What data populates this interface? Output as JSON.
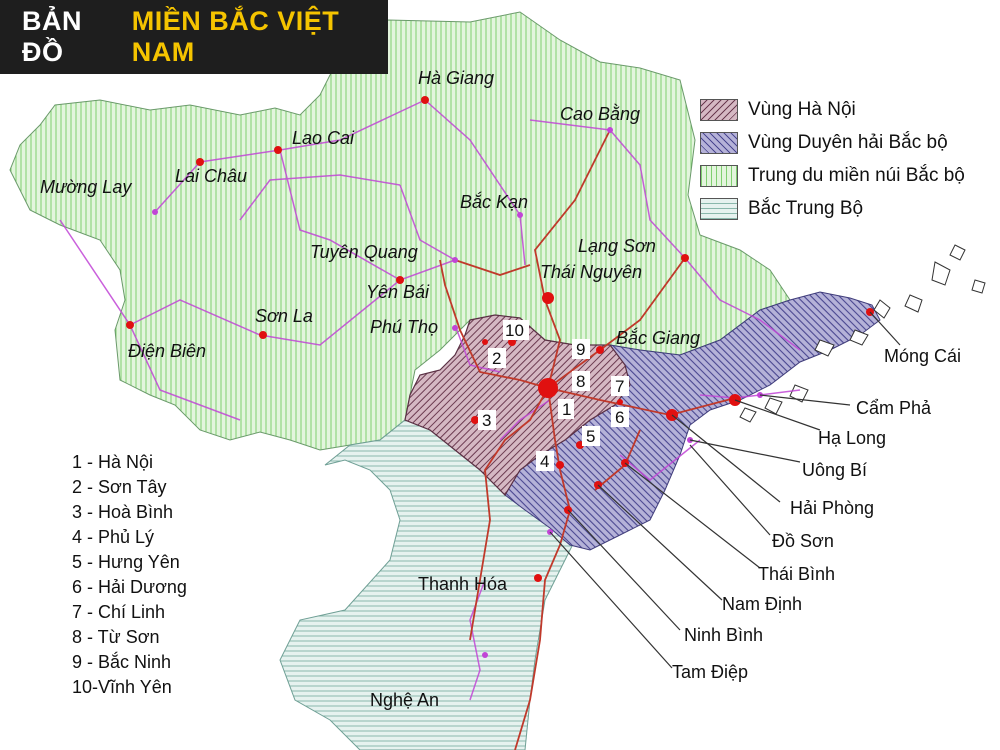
{
  "title": {
    "part1": "BẢN ĐỒ",
    "part2": "MIỀN BẮC VIỆT NAM"
  },
  "colors": {
    "title_bg": "#1e1e1e",
    "title_accent": "#f5c400",
    "hanoi_region": "#c9a6b4",
    "coastal_region": "#9d9ac9",
    "midland_region": "#d5f0cf",
    "north_central": "#d6ebe6",
    "road_main": "#c0392b",
    "road_secondary": "#b93cc8",
    "city_dot": "#e01010"
  },
  "legend": [
    {
      "label": "Vùng Hà Nội",
      "color": "#c9a6b4"
    },
    {
      "label": "Vùng Duyên hải Bắc bộ",
      "color": "#9d9ac9"
    },
    {
      "label": "Trung du miền núi Bắc bộ",
      "color": "#d5f0cf"
    },
    {
      "label": "Bắc Trung Bộ",
      "color": "#d6ebe6"
    }
  ],
  "key_list": [
    "1 - Hà Nội",
    "2 - Sơn Tây",
    "3 - Hoà Bình",
    "4 - Phủ Lý",
    "5 - Hưng Yên",
    "6 - Hải Dương",
    "7 - Chí Linh",
    "8 - Từ Sơn",
    "9 - Bắc Ninh",
    "10-Vĩnh Yên"
  ],
  "province_labels": [
    {
      "name": "Hà Giang",
      "italic": true
    },
    {
      "name": "Cao Bằng",
      "italic": true
    },
    {
      "name": "Lao Cai",
      "italic": true
    },
    {
      "name": "Lai Châu",
      "italic": true
    },
    {
      "name": "Mường Lay",
      "italic": true
    },
    {
      "name": "Bắc Kạn",
      "italic": true
    },
    {
      "name": "Lạng Sơn",
      "italic": true
    },
    {
      "name": "Tuyên Quang",
      "italic": true
    },
    {
      "name": "Thái Nguyên",
      "italic": true
    },
    {
      "name": "Yên Bái",
      "italic": true
    },
    {
      "name": "Sơn La",
      "italic": true
    },
    {
      "name": "Phú Thọ",
      "italic": true
    },
    {
      "name": "Bắc Giang",
      "italic": true
    },
    {
      "name": "Điện Biên",
      "italic": true
    }
  ],
  "coastal_labels": [
    "Móng Cái",
    "Cẩm Phả",
    "Hạ Long",
    "Uông Bí",
    "Hải Phòng",
    "Đồ Sơn",
    "Thái Bình",
    "Nam Định",
    "Ninh Bình",
    "Tam Điệp"
  ],
  "south_labels": [
    "Thanh Hóa",
    "Nghệ An"
  ],
  "number_labels": [
    "10",
    "2",
    "9",
    "8",
    "7",
    "1",
    "6",
    "3",
    "5",
    "4"
  ]
}
